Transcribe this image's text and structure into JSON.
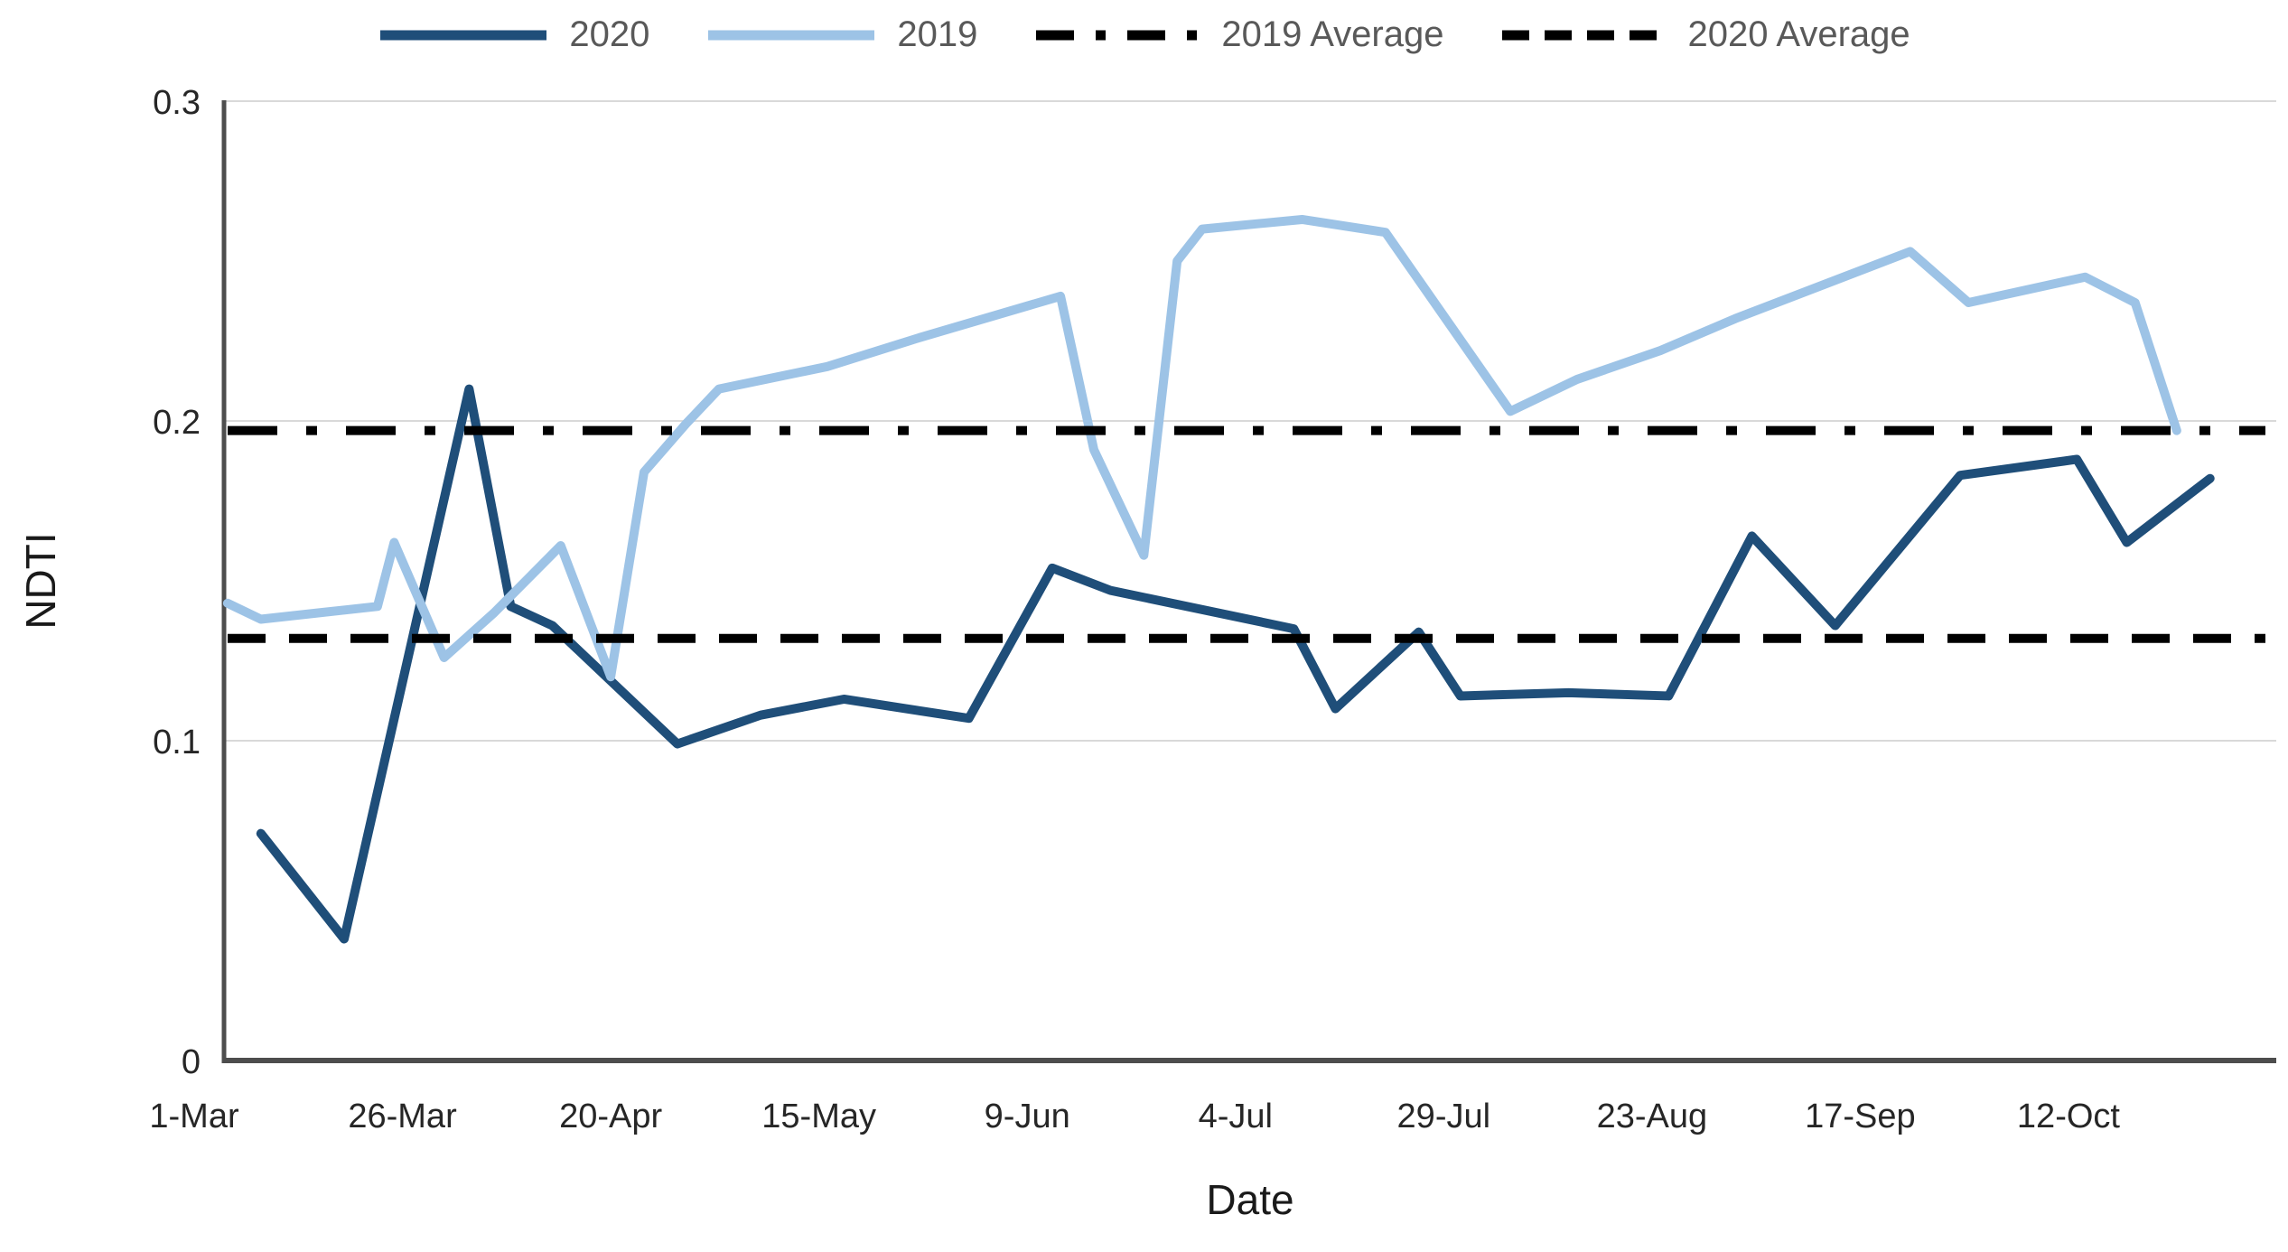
{
  "chart_data": {
    "type": "line",
    "title": "",
    "xlabel": "Date",
    "ylabel": "NDTI",
    "ylim": [
      0,
      0.3
    ],
    "y_ticks": [
      0,
      0.1,
      0.2,
      0.3
    ],
    "x_tick_labels": [
      "1-Mar",
      "26-Mar",
      "20-Apr",
      "15-May",
      "9-Jun",
      "4-Jul",
      "29-Jul",
      "23-Aug",
      "17-Sep",
      "12-Oct"
    ],
    "x_unit": "day-month dates, March through early November",
    "grid": "horizontal gridlines at 0.1 intervals",
    "legend_position": "top",
    "colors": {
      "gridline": "#D9D9D9",
      "axis": "#4D4D4D",
      "tick_text": "#262626",
      "legend_text": "#595959",
      "background": "#FFFFFF"
    },
    "series": [
      {
        "name": "2020",
        "color": "#1F4E79",
        "style": "solid",
        "points": [
          [
            "9-Mar",
            0.071
          ],
          [
            "19-Mar",
            0.038
          ],
          [
            "3-Apr",
            0.21
          ],
          [
            "8-Apr",
            0.142
          ],
          [
            "13-Apr",
            0.136
          ],
          [
            "28-Apr",
            0.099
          ],
          [
            "8-May",
            0.108
          ],
          [
            "18-May",
            0.113
          ],
          [
            "2-Jun",
            0.107
          ],
          [
            "12-Jun",
            0.154
          ],
          [
            "19-Jun",
            0.147
          ],
          [
            "11-Jul",
            0.135
          ],
          [
            "16-Jul",
            0.11
          ],
          [
            "26-Jul",
            0.134
          ],
          [
            "31-Jul",
            0.114
          ],
          [
            "13-Aug",
            0.115
          ],
          [
            "25-Aug",
            0.114
          ],
          [
            "4-Sep",
            0.164
          ],
          [
            "14-Sep",
            0.136
          ],
          [
            "29-Sep",
            0.183
          ],
          [
            "13-Oct",
            0.188
          ],
          [
            "19-Oct",
            0.162
          ],
          [
            "29-Oct",
            0.182
          ]
        ]
      },
      {
        "name": "2019",
        "color": "#9DC3E6",
        "style": "solid",
        "points": [
          [
            "5-Mar",
            0.143
          ],
          [
            "9-Mar",
            0.138
          ],
          [
            "16-Mar",
            0.14
          ],
          [
            "23-Mar",
            0.142
          ],
          [
            "25-Mar",
            0.162
          ],
          [
            "31-Mar",
            0.126
          ],
          [
            "6-Apr",
            0.14
          ],
          [
            "14-Apr",
            0.161
          ],
          [
            "20-Apr",
            0.12
          ],
          [
            "24-Apr",
            0.184
          ],
          [
            "29-Apr",
            0.199
          ],
          [
            "3-May",
            0.21
          ],
          [
            "16-May",
            0.217
          ],
          [
            "27-May",
            0.226
          ],
          [
            "13-Jun",
            0.239
          ],
          [
            "17-Jun",
            0.191
          ],
          [
            "23-Jun",
            0.158
          ],
          [
            "27-Jun",
            0.25
          ],
          [
            "30-Jun",
            0.26
          ],
          [
            "12-Jul",
            0.263
          ],
          [
            "22-Jul",
            0.259
          ],
          [
            "6-Aug",
            0.203
          ],
          [
            "14-Aug",
            0.213
          ],
          [
            "24-Aug",
            0.222
          ],
          [
            "2-Sep",
            0.232
          ],
          [
            "23-Sep",
            0.253
          ],
          [
            "30-Sep",
            0.237
          ],
          [
            "14-Oct",
            0.245
          ],
          [
            "20-Oct",
            0.237
          ],
          [
            "25-Oct",
            0.197
          ]
        ]
      },
      {
        "name": "2019 Average",
        "color": "#000000",
        "style": "dash-dot",
        "value": 0.197
      },
      {
        "name": "2020 Average",
        "color": "#000000",
        "style": "dashed",
        "value": 0.132
      }
    ]
  }
}
